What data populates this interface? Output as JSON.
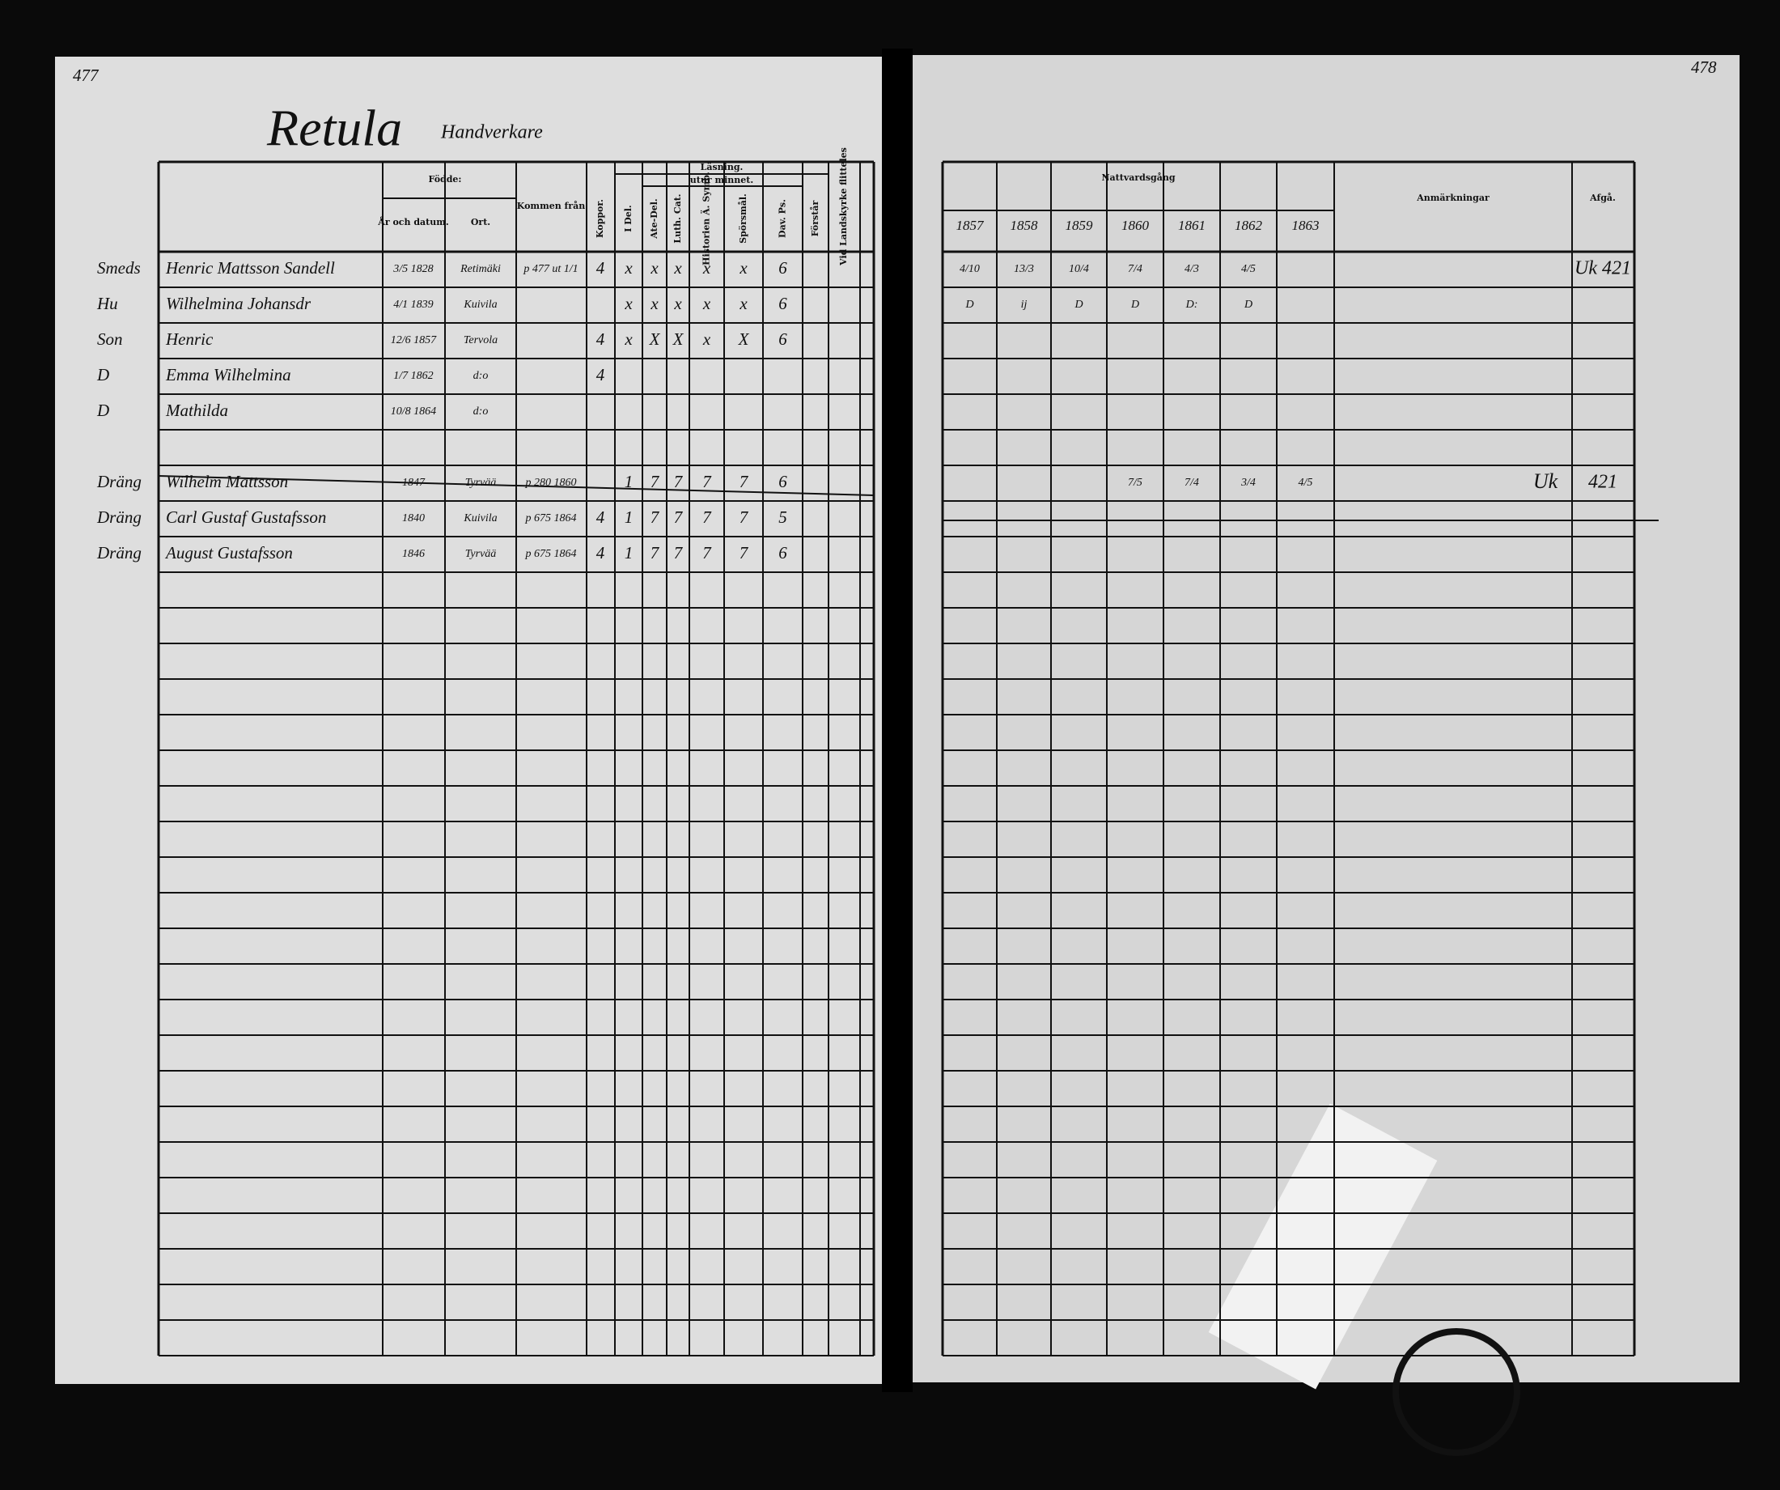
{
  "pages": {
    "left_number": "477",
    "right_number": "478"
  },
  "title": "Retula",
  "subtitle": "Handverkare",
  "left_table": {
    "headers": {
      "born": "Födde:",
      "date": "År och datum.",
      "place": "Ort.",
      "from": "Kommen från",
      "koppor": "Koppor.",
      "reading": "Läsning.",
      "memory": "utur minnet.",
      "reading_columns": [
        "I Del.",
        "Ate-Del.",
        "Luth. Cat.",
        "Historien Ä. Symb.",
        "Spörsmål.",
        "Dav. Ps.",
        "Förstår"
      ],
      "church": "Vid Landskyrke flitteles"
    },
    "rows": [
      {
        "role": "Smeds",
        "name": "Henric Mattsson Sandell",
        "born": "3/5 1828",
        "place": "Retimäki",
        "from": "p 477 ut 1/1",
        "koppor": "4",
        "reading": [
          "x",
          "x",
          "x",
          "x",
          "x",
          "6"
        ]
      },
      {
        "role": "Hu",
        "name": "Wilhelmina Johansdr",
        "born": "4/1 1839",
        "place": "Kuivila",
        "reading": [
          "x",
          "x",
          "x",
          "x",
          "x",
          "6"
        ]
      },
      {
        "role": "Son",
        "name": "Henric",
        "born": "12/6 1857",
        "place": "Tervola",
        "koppor": "4",
        "reading": [
          "x",
          "X",
          "X",
          "x",
          "X",
          "6"
        ]
      },
      {
        "role": "D",
        "name": "Emma Wilhelmina",
        "born": "1/7 1862",
        "place": "d:o",
        "koppor": "4"
      },
      {
        "role": "D",
        "name": "Mathilda",
        "born": "10/8 1864",
        "place": "d:o"
      },
      null,
      {
        "role": "Dräng",
        "name": "Wilhelm Mattsson",
        "born": "1847",
        "place": "Tyrvää",
        "from": "p 280 1860",
        "reading": [
          "1",
          "7",
          "7",
          "7",
          "7",
          "6"
        ]
      },
      {
        "role": "Dräng",
        "name": "Carl Gustaf Gustafsson",
        "born": "1840",
        "place": "Kuivila",
        "from": "p 675 1864",
        "koppor": "4",
        "reading": [
          "1",
          "7",
          "7",
          "7",
          "7",
          "5"
        ]
      },
      {
        "role": "Dräng",
        "name": "August Gustafsson",
        "born": "1846",
        "place": "Tyrvää",
        "from": "p 675 1864",
        "koppor": "4",
        "reading": [
          "1",
          "7",
          "7",
          "7",
          "7",
          "6"
        ]
      }
    ]
  },
  "right_table": {
    "headers": {
      "communion": "Nattvardsgång",
      "years": [
        "1857",
        "1858",
        "1859",
        "1860",
        "1861",
        "1862",
        "1863"
      ],
      "remarks": "Anmärkningar",
      "left": "Afgå."
    },
    "rows": [
      {
        "communion": [
          "4/10",
          "13/3",
          "10/4",
          "7/4",
          "4/3",
          "4/5"
        ],
        "left": "Uk 421"
      },
      {
        "communion": [
          "D",
          "ij",
          "D",
          "D",
          "D:",
          "D"
        ]
      },
      null,
      null,
      null,
      null,
      {
        "communion": [
          null,
          null,
          null,
          "7/5",
          "7/4",
          "3/4",
          "4/5"
        ],
        "remarks": "Uk",
        "left": "421"
      }
    ]
  }
}
